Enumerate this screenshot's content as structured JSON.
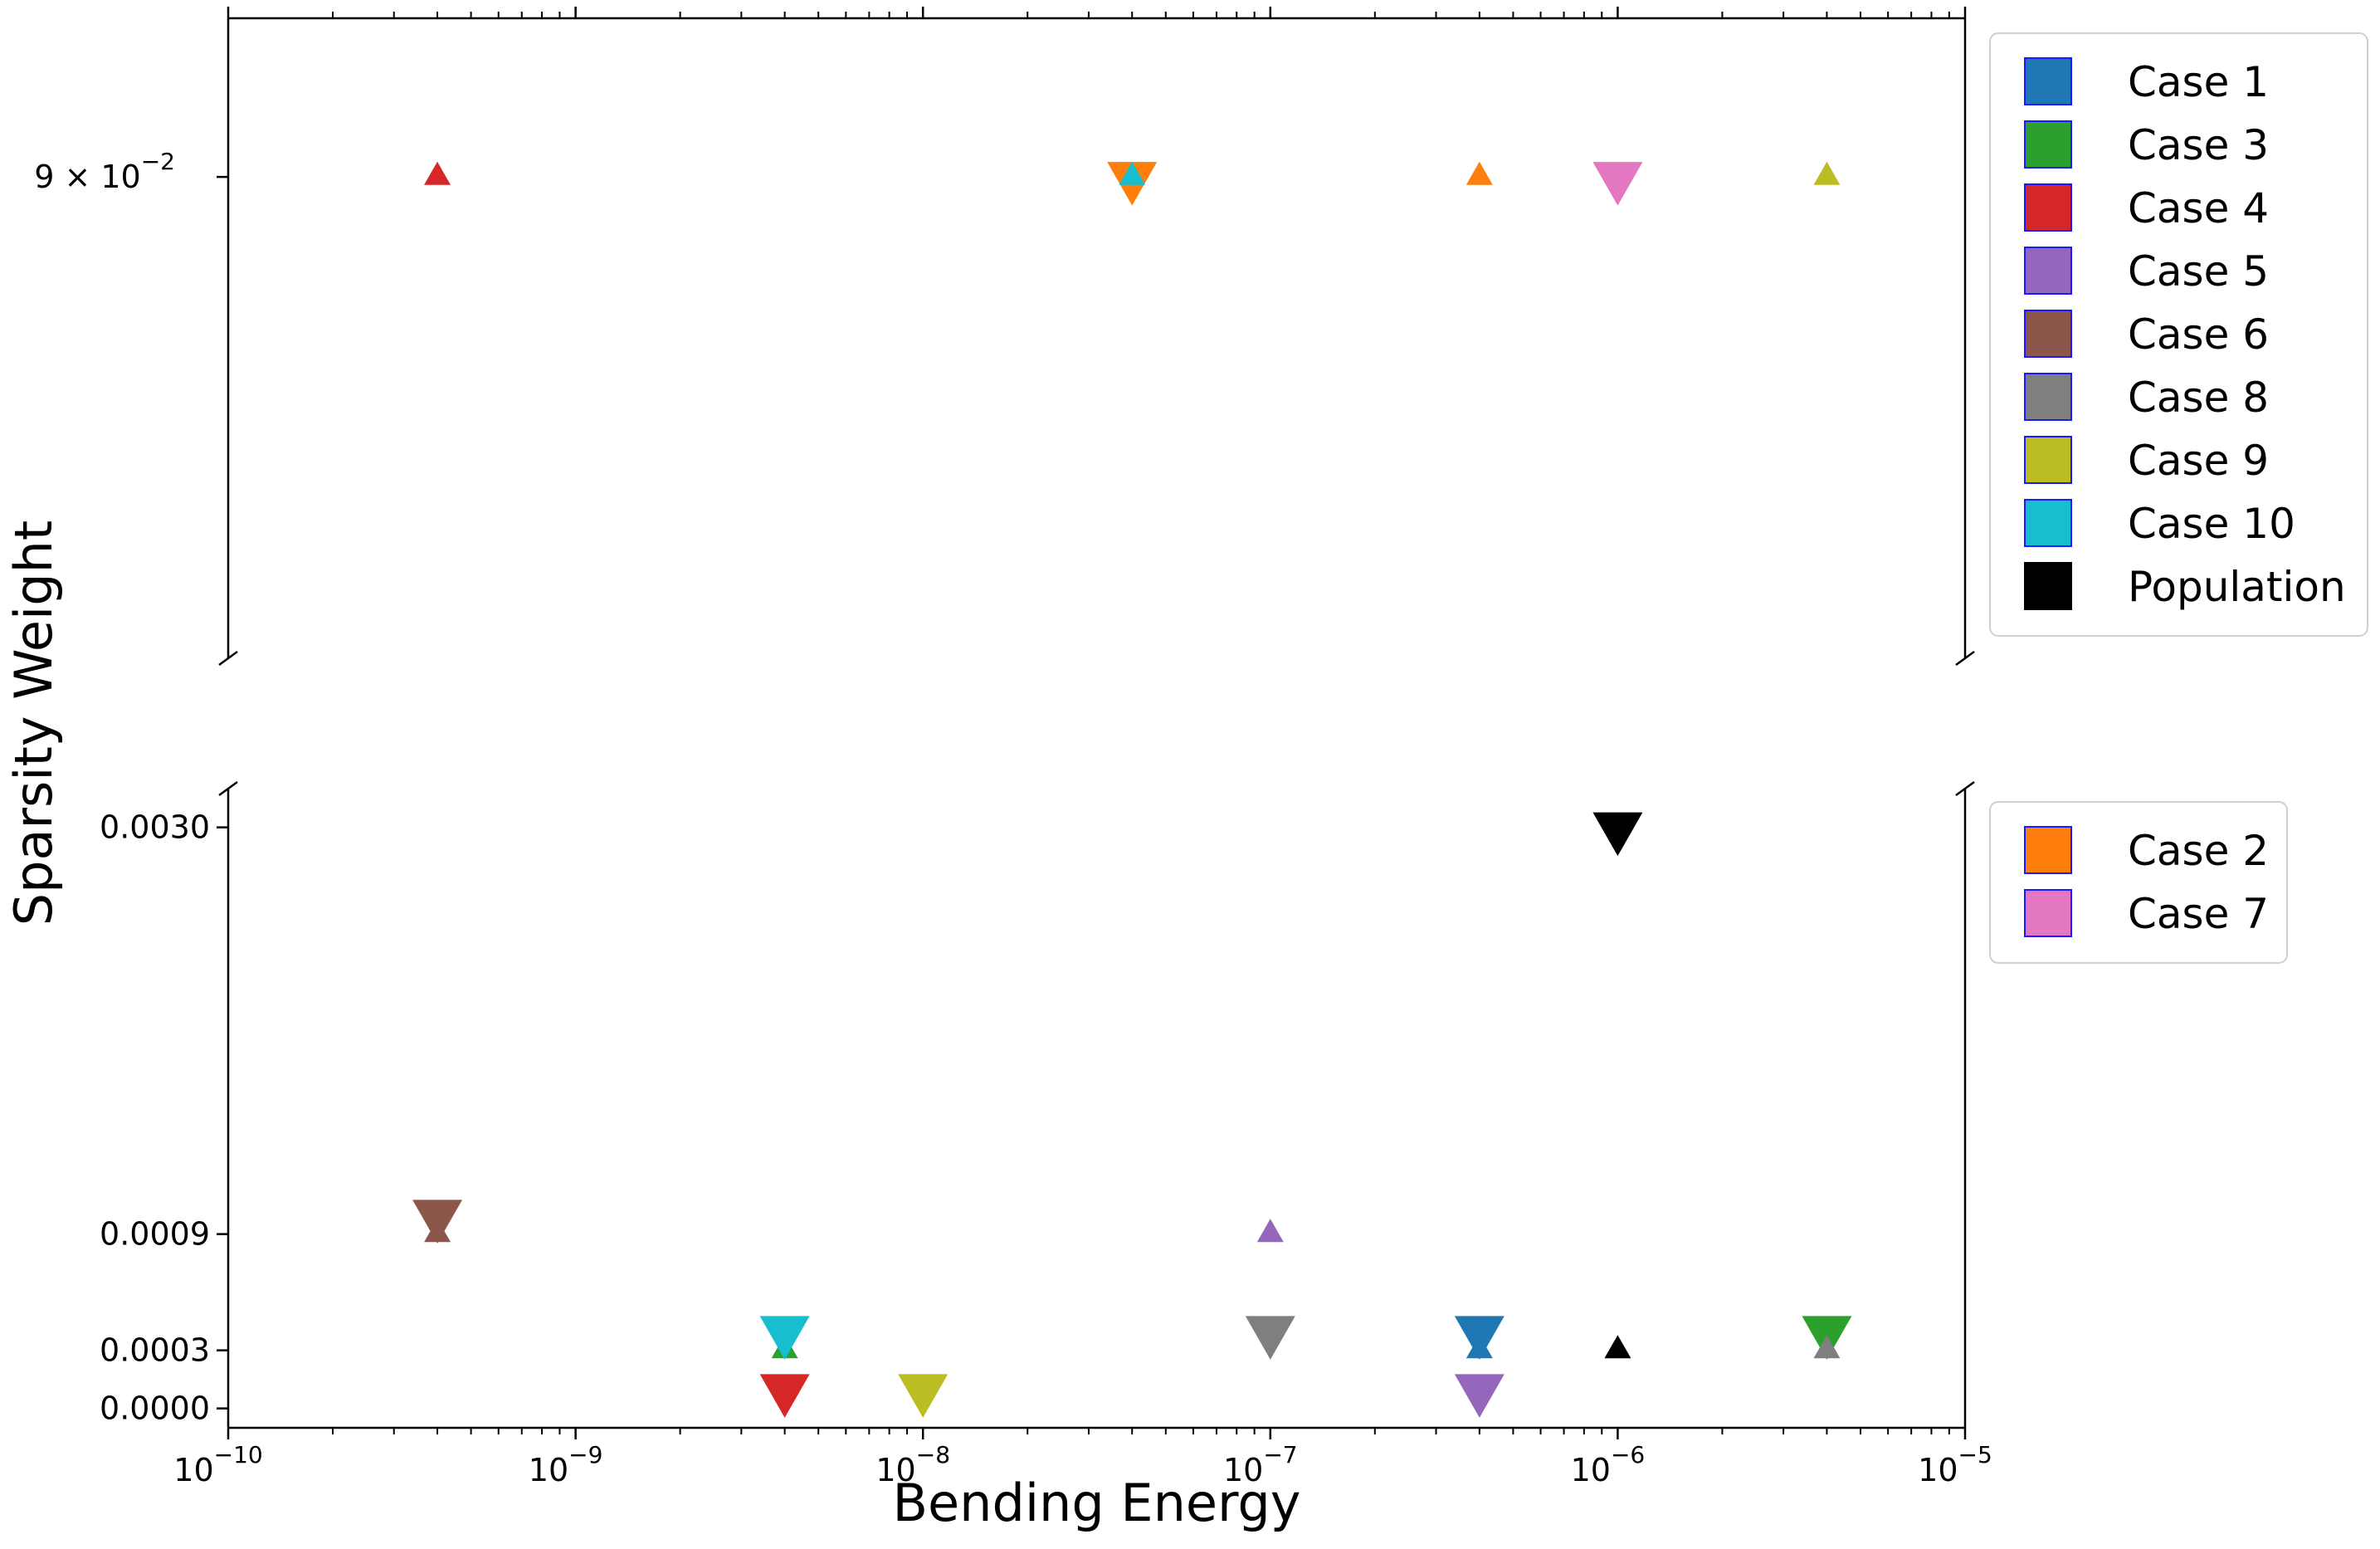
{
  "chart_data": {
    "type": "scatter",
    "layout": "broken-y-axis",
    "xlabel": "Bending Energy",
    "ylabel": "Sparsity Weight",
    "xscale": "log",
    "xlim": [
      1e-10,
      1e-05
    ],
    "x_ticks": [
      {
        "value": 1e-10,
        "base": "10",
        "exp": "−10"
      },
      {
        "value": 1e-09,
        "base": "10",
        "exp": "−9"
      },
      {
        "value": 1e-08,
        "base": "10",
        "exp": "−8"
      },
      {
        "value": 1e-07,
        "base": "10",
        "exp": "−7"
      },
      {
        "value": 1e-06,
        "base": "10",
        "exp": "−6"
      },
      {
        "value": 1e-05,
        "base": "10",
        "exp": "−5"
      }
    ],
    "upper_panel": {
      "yscale": "log",
      "ylim": [
        0.0885,
        0.0905
      ],
      "y_ticks": [
        {
          "value": 0.09,
          "mantissa": "9 × 10",
          "exp": "−2"
        }
      ]
    },
    "lower_panel": {
      "yscale": "linear",
      "ylim": [
        -0.0001,
        0.0032
      ],
      "y_ticks": [
        {
          "value": 0.003,
          "label": "0.0030"
        },
        {
          "value": 0.0009,
          "label": "0.0009"
        },
        {
          "value": 0.0003,
          "label": "0.0003"
        },
        {
          "value": 0.0,
          "label": "0.0000"
        }
      ]
    },
    "marker_meaning": {
      "triangle_up": "small",
      "triangle_down": "large"
    },
    "series": [
      {
        "name": "Case 1",
        "color": "#1f77b4",
        "points": [
          {
            "x": 4e-07,
            "y": 0.0003,
            "marker": "up"
          },
          {
            "x": 4e-07,
            "y": 0.0004,
            "marker": "down"
          }
        ]
      },
      {
        "name": "Case 2",
        "color": "#ff7f0e",
        "points": [
          {
            "x": 4e-08,
            "y": 0.09,
            "marker": "down"
          },
          {
            "x": 4e-07,
            "y": 0.09,
            "marker": "up"
          }
        ]
      },
      {
        "name": "Case 3",
        "color": "#2ca02c",
        "points": [
          {
            "x": 4e-09,
            "y": 0.0003,
            "marker": "up"
          },
          {
            "x": 4e-06,
            "y": 0.0004,
            "marker": "down"
          }
        ]
      },
      {
        "name": "Case 4",
        "color": "#d62728",
        "points": [
          {
            "x": 4e-10,
            "y": 0.09,
            "marker": "up"
          },
          {
            "x": 4e-09,
            "y": 0.0001,
            "marker": "down"
          }
        ]
      },
      {
        "name": "Case 5",
        "color": "#9467bd",
        "points": [
          {
            "x": 1e-07,
            "y": 0.0009,
            "marker": "up"
          },
          {
            "x": 4e-07,
            "y": 0.0001,
            "marker": "down"
          }
        ]
      },
      {
        "name": "Case 6",
        "color": "#8c564b",
        "points": [
          {
            "x": 4e-10,
            "y": 0.0009,
            "marker": "up"
          },
          {
            "x": 4e-10,
            "y": 0.001,
            "marker": "down"
          }
        ]
      },
      {
        "name": "Case 7",
        "color": "#e377c2",
        "points": [
          {
            "x": 1e-06,
            "y": 0.09,
            "marker": "down"
          }
        ]
      },
      {
        "name": "Case 8",
        "color": "#7f7f7f",
        "points": [
          {
            "x": 1e-07,
            "y": 0.0004,
            "marker": "down"
          },
          {
            "x": 4e-06,
            "y": 0.0003,
            "marker": "up"
          }
        ]
      },
      {
        "name": "Case 9",
        "color": "#bcbd22",
        "points": [
          {
            "x": 1e-08,
            "y": 0.0001,
            "marker": "down"
          },
          {
            "x": 4e-06,
            "y": 0.09,
            "marker": "up"
          }
        ]
      },
      {
        "name": "Case 10",
        "color": "#17becf",
        "points": [
          {
            "x": 4e-08,
            "y": 0.09,
            "marker": "up"
          },
          {
            "x": 4e-09,
            "y": 0.0004,
            "marker": "down"
          }
        ]
      },
      {
        "name": "Population",
        "color": "#000000",
        "points": [
          {
            "x": 1e-06,
            "y": 0.003,
            "marker": "down"
          },
          {
            "x": 1e-06,
            "y": 0.0003,
            "marker": "up"
          }
        ]
      }
    ],
    "legends": [
      {
        "placement": "right of upper panel",
        "entries": [
          "Case 1",
          "Case 3",
          "Case 4",
          "Case 5",
          "Case 6",
          "Case 8",
          "Case 9",
          "Case 10",
          "Population"
        ]
      },
      {
        "placement": "right of lower panel, top",
        "entries": [
          "Case 2",
          "Case 7"
        ]
      }
    ],
    "grid": false
  }
}
